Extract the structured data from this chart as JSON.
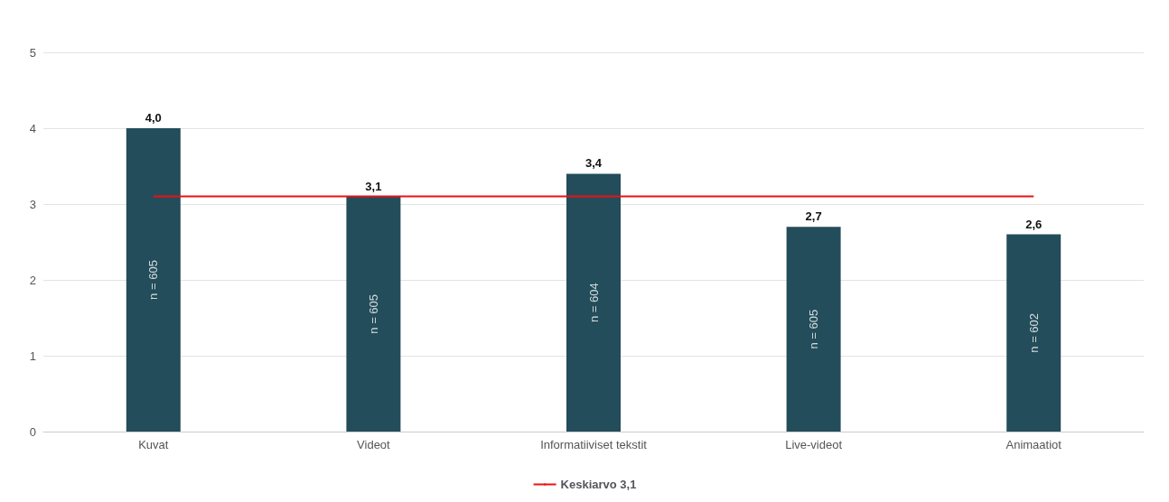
{
  "chart_data": {
    "type": "bar",
    "categories": [
      "Kuvat",
      "Videot",
      "Informatiiviset tekstit",
      "Live-videot",
      "Animaatiot"
    ],
    "values": [
      4.0,
      3.1,
      3.4,
      2.7,
      2.6
    ],
    "value_labels": [
      "4,0",
      "3,1",
      "3,4",
      "2,7",
      "2,6"
    ],
    "color": "#234d5a",
    "ylim": [
      0,
      5
    ],
    "yticks": [
      0,
      1,
      2,
      3,
      4,
      5
    ],
    "grid": "y",
    "ref_lines": [
      {
        "axis": "y",
        "value": 3.1,
        "label": "Keskiarvo 3,1",
        "color": "#ee1111"
      }
    ],
    "annotations": [
      "n = 605",
      "n = 605",
      "n = 604",
      "n = 605",
      "n = 602"
    ],
    "legend": "bottom"
  }
}
